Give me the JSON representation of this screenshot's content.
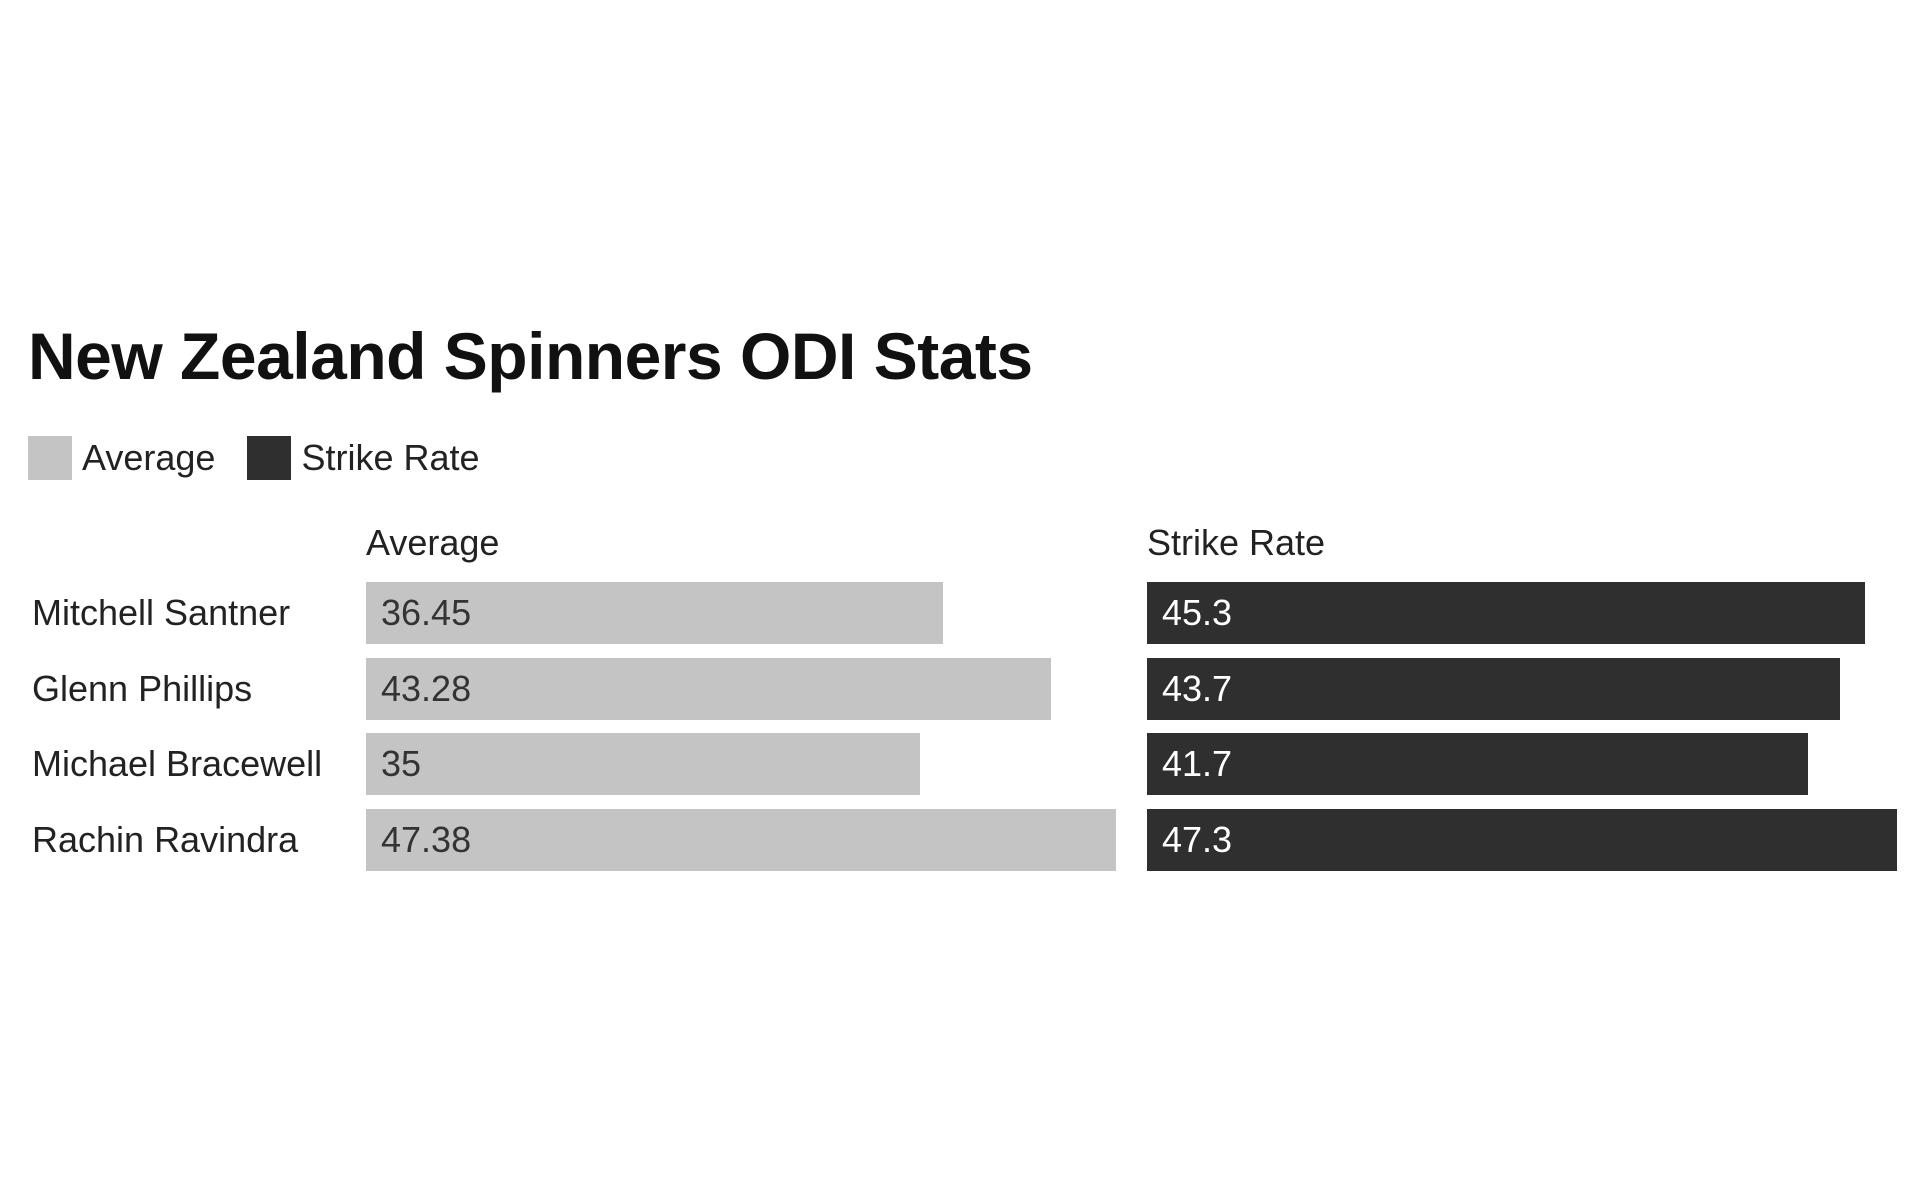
{
  "chart_data": {
    "type": "bar",
    "orientation": "horizontal",
    "title": "New Zealand Spinners ODI Stats",
    "categories": [
      "Mitchell Santner",
      "Glenn Phillips",
      "Michael Bracewell",
      "Rachin Ravindra"
    ],
    "series": [
      {
        "name": "Average",
        "values": [
          36.45,
          43.28,
          35,
          47.38
        ],
        "labels": [
          "36.45",
          "43.28",
          "35",
          "47.38"
        ],
        "color": "#c4c4c4",
        "text_color": "#333333"
      },
      {
        "name": "Strike Rate",
        "values": [
          45.3,
          43.7,
          41.7,
          47.3
        ],
        "labels": [
          "45.3",
          "43.7",
          "41.7",
          "47.3"
        ],
        "color": "#2f2f2f",
        "text_color": "#ffffff"
      }
    ],
    "legend_position": "top-left",
    "grid": false
  }
}
